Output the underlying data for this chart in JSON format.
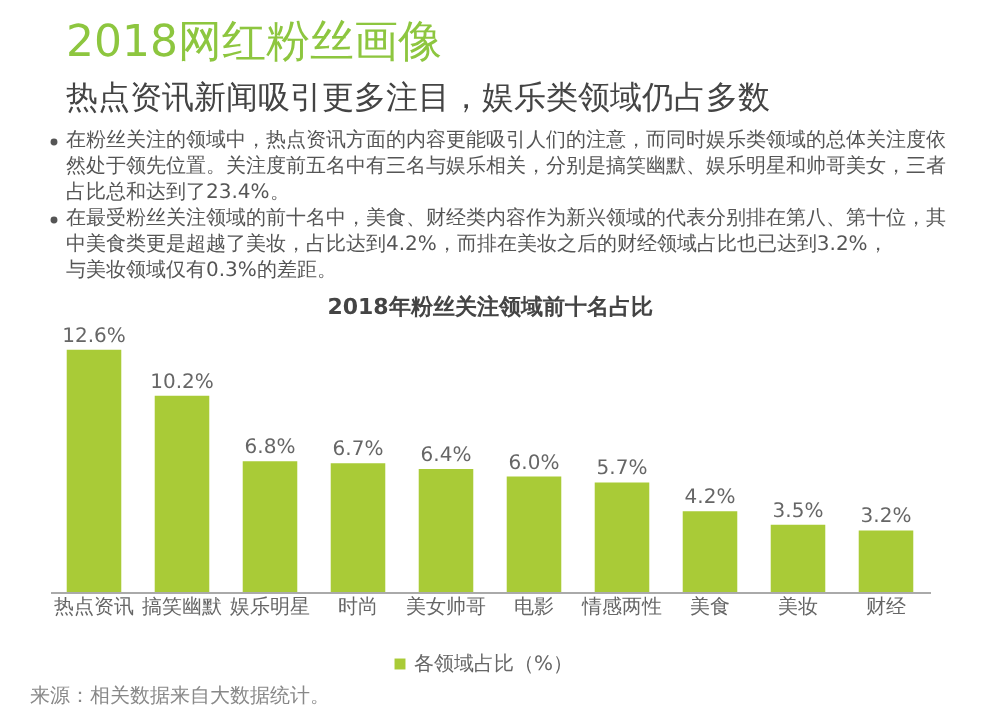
{
  "chart_data": [
    {
      "type": "other",
      "title": "2018网红粉丝画像",
      "subtitle": "热点资讯新闻吸引更多注目，娱乐类领域仍占多数",
      "annotations": [
        "在粉丝关注的领域中，热点资讯方面的内容更能吸引人们的注意，而同时娱乐类领域的总体关注度依然处于领先位置。关注度前五名中有三名与娱乐相关，分别是搞笑幽默、娱乐明星和帅哥美女，三者占比总和达到了23.4%。",
        "在最受粉丝关注领域的前十名中，美食、财经类内容作为新兴领域的代表分别排在第八、第十位，其中美食类更是超越了美妆，占比达到4.2%，而排在美妆之后的财经领域占比也已达到3.2%，与美妆领域仅有0.3%的差距。"
      ]
    },
    {
      "type": "bar",
      "title": "2018年粉丝关注领域前十名占比",
      "categories": [
        "热点资讯",
        "搞笑幽默",
        "娱乐明星",
        "时尚",
        "美女帅哥",
        "电影",
        "情感两性",
        "美食",
        "美妆",
        "财经"
      ],
      "series": [
        {
          "name": "各领域占比（%）",
          "color": "#a9cb37",
          "values": [
            12.6,
            10.2,
            6.8,
            6.7,
            6.4,
            6.0,
            5.7,
            4.2,
            3.5,
            3.2
          ],
          "value_labels": [
            "12.6%",
            "10.2%",
            "6.8%",
            "6.7%",
            "6.4%",
            "6.0%",
            "5.7%",
            "4.2%",
            "3.5%",
            "3.2%"
          ]
        }
      ],
      "legend": "bottom",
      "annotations": [
        "来源：相关数据来自大数据统计。"
      ]
    }
  ]
}
